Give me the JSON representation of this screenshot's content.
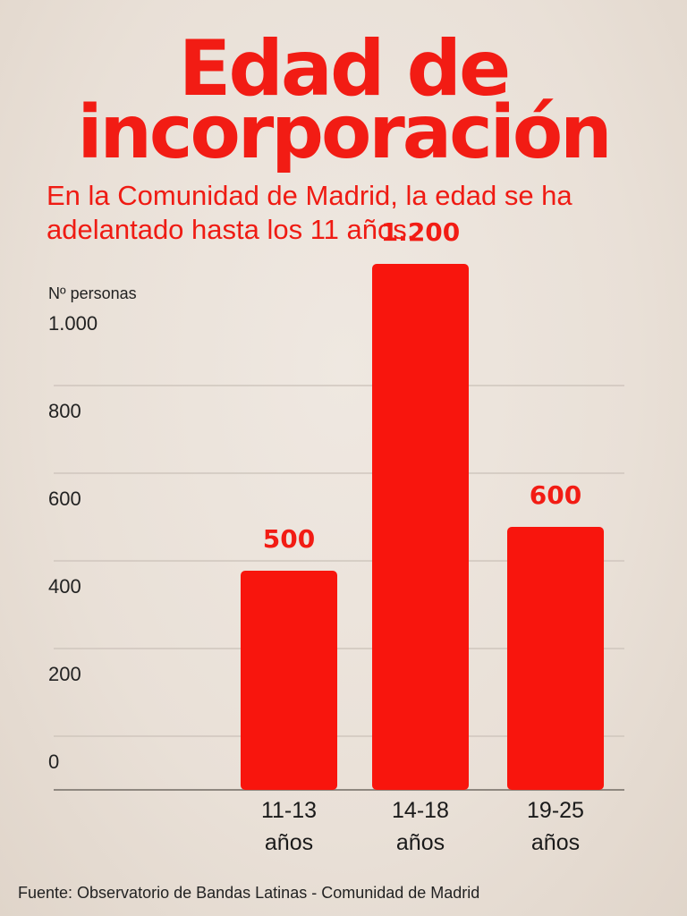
{
  "title_lines": [
    "Edad de",
    "incorporación"
  ],
  "subtitle": "En la Comunidad de Madrid, la edad se ha adelantado hasta los 11 años.",
  "source": "Fuente: Observatorio de Bandas Latinas - Comunidad de Madrid",
  "colors": {
    "accent": "#f21c14",
    "bar": "#f8150d"
  },
  "chart_data": {
    "type": "bar",
    "ylabel": "Nº personas",
    "y_ticks": [
      0,
      200,
      400,
      600,
      800,
      1000
    ],
    "y_tick_labels": [
      "0",
      "200",
      "400",
      "600",
      "800",
      "1.000"
    ],
    "ylim": [
      0,
      1000
    ],
    "categories": [
      [
        "11-13",
        "años"
      ],
      [
        "14-18",
        "años"
      ],
      [
        "19-25",
        "años"
      ]
    ],
    "values": [
      500,
      1200,
      600
    ],
    "data_labels": [
      "500",
      "1.200",
      "600"
    ],
    "grid": true,
    "legend": "none"
  }
}
